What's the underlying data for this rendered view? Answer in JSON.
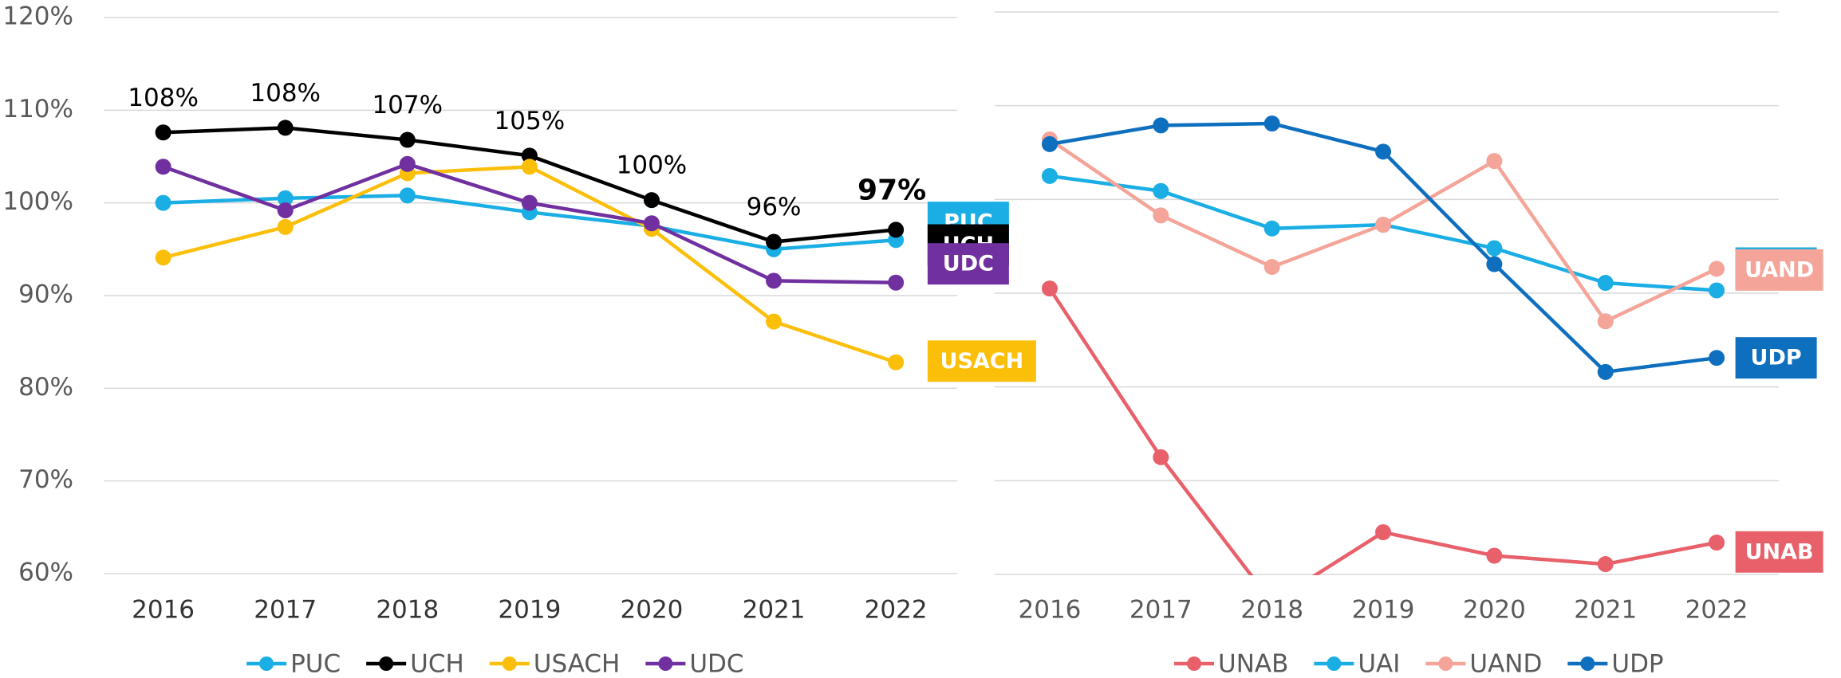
{
  "chart_data": [
    {
      "type": "line",
      "categories": [
        "2016",
        "2017",
        "2018",
        "2019",
        "2020",
        "2021",
        "2022"
      ],
      "ylim": [
        60,
        120
      ],
      "yticks": [
        {
          "value": 60,
          "label": "60%"
        },
        {
          "value": 70,
          "label": "70%"
        },
        {
          "value": 80,
          "label": "80%"
        },
        {
          "value": 90,
          "label": "90%"
        },
        {
          "value": 100,
          "label": "100%"
        },
        {
          "value": 110,
          "label": "110%"
        },
        {
          "value": 120,
          "label": "120%"
        }
      ],
      "grid": true,
      "legend": "bottom",
      "series": [
        {
          "name": "PUC",
          "color": "#1aaee5",
          "values": [
            100,
            100.5,
            100.8,
            99,
            97.5,
            95,
            96
          ]
        },
        {
          "name": "UCH",
          "color": "#000000",
          "values": [
            107.6,
            108.1,
            106.8,
            105.1,
            100.3,
            95.8,
            97.1
          ],
          "value_labels": [
            "108%",
            "108%",
            "107%",
            "105%",
            "100%",
            "96%",
            "97%"
          ]
        },
        {
          "name": "USACH",
          "color": "#fbbf0a",
          "values": [
            94.1,
            97.4,
            103.2,
            103.9,
            97.2,
            87.2,
            82.8
          ]
        },
        {
          "name": "UDC",
          "color": "#7030a0",
          "values": [
            103.9,
            99.2,
            104.2,
            100,
            97.8,
            91.6,
            91.4
          ]
        }
      ]
    },
    {
      "type": "line",
      "categories": [
        "2016",
        "2017",
        "2018",
        "2019",
        "2020",
        "2021",
        "2022"
      ],
      "ylim": [
        60,
        120
      ],
      "yticks": [
        60,
        70,
        80,
        90,
        100,
        110,
        120
      ],
      "grid": true,
      "legend": "bottom",
      "series": [
        {
          "name": "UNAB",
          "color": "#e8606a",
          "values": [
            90.5,
            72.5,
            57,
            64.5,
            62,
            61.1,
            63.4
          ]
        },
        {
          "name": "UAI",
          "color": "#1aaee5",
          "values": [
            102.5,
            100.9,
            96.9,
            97.3,
            94.8,
            91.1,
            90.3
          ]
        },
        {
          "name": "UAND",
          "color": "#f4a498",
          "values": [
            106.4,
            98.3,
            92.8,
            97.3,
            104.1,
            87,
            92.6
          ]
        },
        {
          "name": "UDP",
          "color": "#0f6fbf",
          "values": [
            105.9,
            107.9,
            108.1,
            105.1,
            93.1,
            81.6,
            83.1
          ]
        }
      ]
    }
  ]
}
